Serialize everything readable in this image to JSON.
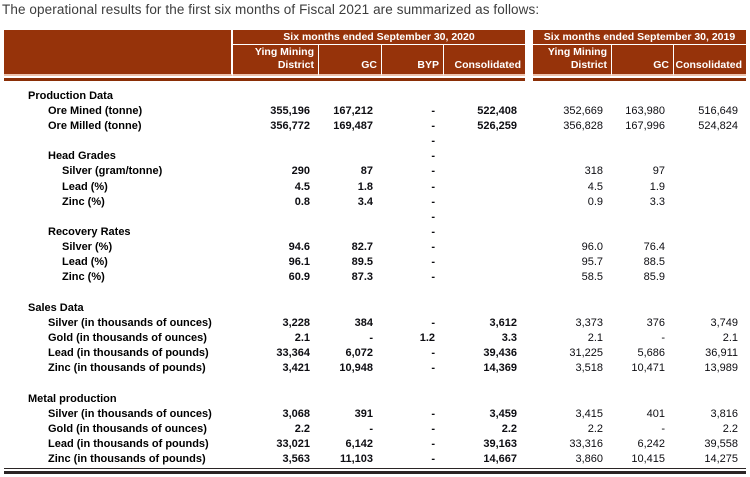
{
  "title": "The operational results for the first six months of Fiscal 2021 are summarized as follows:",
  "colors": {
    "header_bg": "#96330a",
    "header_text": "#ffffff",
    "header_rule": "#8a2e06",
    "header_stripe": "#eec3ad",
    "body_text": "#000000"
  },
  "table": {
    "groups": [
      {
        "title": "Six months ended September 30, 2020",
        "columns": [
          "Ying Mining District",
          "GC",
          "BYP",
          "Consolidated"
        ]
      },
      {
        "title": "Six months ended September 30, 2019",
        "columns": [
          "Ying Mining District",
          "GC",
          "Consolidated"
        ]
      }
    ],
    "rows": [
      {
        "label": "Production Data",
        "indent": 1,
        "values": [
          "",
          "",
          "",
          "",
          "",
          "",
          ""
        ]
      },
      {
        "label": "Ore Mined (tonne)",
        "indent": 2,
        "values": [
          "355,196",
          "167,212",
          "-",
          "522,408",
          "352,669",
          "163,980",
          "516,649"
        ]
      },
      {
        "label": "Ore Milled (tonne)",
        "indent": 2,
        "values": [
          "356,772",
          "169,487",
          "-",
          "526,259",
          "356,828",
          "167,996",
          "524,824"
        ]
      },
      {
        "label": "",
        "indent": 2,
        "values": [
          "",
          "",
          "-",
          "",
          "",
          "",
          ""
        ]
      },
      {
        "label": "Head Grades",
        "indent": 2,
        "values": [
          "",
          "",
          "-",
          "",
          "",
          "",
          ""
        ]
      },
      {
        "label": "Silver (gram/tonne)",
        "indent": 3,
        "values": [
          "290",
          "87",
          "-",
          "",
          "318",
          "97",
          ""
        ]
      },
      {
        "label": "Lead  (%)",
        "indent": 3,
        "values": [
          "4.5",
          "1.8",
          "-",
          "",
          "4.5",
          "1.9",
          ""
        ]
      },
      {
        "label": "Zinc (%)",
        "indent": 3,
        "values": [
          "0.8",
          "3.4",
          "-",
          "",
          "0.9",
          "3.3",
          ""
        ]
      },
      {
        "label": "",
        "indent": 2,
        "values": [
          "",
          "",
          "-",
          "",
          "",
          "",
          ""
        ]
      },
      {
        "label": "Recovery Rates",
        "indent": 2,
        "values": [
          "",
          "",
          "-",
          "",
          "",
          "",
          ""
        ]
      },
      {
        "label": "Silver  (%)",
        "indent": 3,
        "values": [
          "94.6",
          "82.7",
          "-",
          "",
          "96.0",
          "76.4",
          ""
        ]
      },
      {
        "label": "Lead  (%)",
        "indent": 3,
        "values": [
          "96.1",
          "89.5",
          "-",
          "",
          "95.7",
          "88.5",
          ""
        ]
      },
      {
        "label": "Zinc (%)",
        "indent": 3,
        "values": [
          "60.9",
          "87.3",
          "-",
          "",
          "58.5",
          "85.9",
          ""
        ]
      },
      {
        "label": "",
        "indent": 2,
        "values": [
          "",
          "",
          "",
          "",
          "",
          "",
          ""
        ]
      },
      {
        "label": "Sales Data",
        "indent": 1,
        "values": [
          "",
          "",
          "",
          "",
          "",
          "",
          ""
        ]
      },
      {
        "label": "Silver (in thousands of ounces)",
        "indent": 2,
        "values": [
          "3,228",
          "384",
          "-",
          "3,612",
          "3,373",
          "376",
          "3,749"
        ]
      },
      {
        "label": "Gold  (in thousands of ounces)",
        "indent": 2,
        "values": [
          "2.1",
          "-",
          "1.2",
          "3.3",
          "2.1",
          "-",
          "2.1"
        ]
      },
      {
        "label": "Lead (in thousands of pounds)",
        "indent": 2,
        "values": [
          "33,364",
          "6,072",
          "-",
          "39,436",
          "31,225",
          "5,686",
          "36,911"
        ]
      },
      {
        "label": "Zinc  (in thousands of pounds)",
        "indent": 2,
        "values": [
          "3,421",
          "10,948",
          "-",
          "14,369",
          "3,518",
          "10,471",
          "13,989"
        ]
      },
      {
        "label": "",
        "indent": 2,
        "values": [
          "",
          "",
          "",
          "",
          "",
          "",
          ""
        ]
      },
      {
        "label": "Metal production",
        "indent": 1,
        "values": [
          "",
          "",
          "",
          "",
          "",
          "",
          ""
        ]
      },
      {
        "label": "Silver (in thousands of ounces)",
        "indent": 2,
        "values": [
          "3,068",
          "391",
          "-",
          "3,459",
          "3,415",
          "401",
          "3,816"
        ]
      },
      {
        "label": "Gold  (in thousands of ounces)",
        "indent": 2,
        "values": [
          "2.2",
          "-",
          "-",
          "2.2",
          "2.2",
          "-",
          "2.2"
        ]
      },
      {
        "label": "Lead  (in thousands of pounds)",
        "indent": 2,
        "values": [
          "33,021",
          "6,142",
          "-",
          "39,163",
          "33,316",
          "6,242",
          "39,558"
        ]
      },
      {
        "label": "Zinc   (in thousands of pounds)",
        "indent": 2,
        "values": [
          "3,563",
          "11,103",
          "-",
          "14,667",
          "3,860",
          "10,415",
          "14,275"
        ]
      }
    ]
  }
}
